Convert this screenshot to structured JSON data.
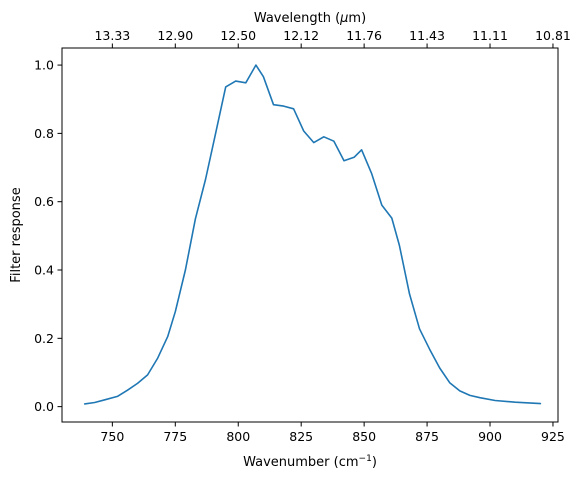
{
  "chart_data": {
    "type": "line",
    "xlabel": "Wavenumber (cm",
    "xlabel_sup": "−1",
    "xlabel_close": ")",
    "ylabel": "Filter response",
    "top_axis_label_pre": "Wavelength (",
    "top_axis_label_mu": "μ",
    "top_axis_label_post": "m)",
    "xlim": [
      730,
      927
    ],
    "ylim": [
      -0.045,
      1.05
    ],
    "x_ticks": [
      750,
      775,
      800,
      825,
      850,
      875,
      900,
      925
    ],
    "x_tick_labels": [
      "750",
      "775",
      "800",
      "825",
      "850",
      "875",
      "900",
      "925"
    ],
    "y_ticks": [
      0.0,
      0.2,
      0.4,
      0.6,
      0.8,
      1.0
    ],
    "y_tick_labels": [
      "0.0",
      "0.2",
      "0.4",
      "0.6",
      "0.8",
      "1.0"
    ],
    "top_ticks": [
      {
        "label": "13.33",
        "x": 750
      },
      {
        "label": "12.90",
        "x": 775
      },
      {
        "label": "12.50",
        "x": 800
      },
      {
        "label": "12.12",
        "x": 825
      },
      {
        "label": "11.76",
        "x": 850
      },
      {
        "label": "11.43",
        "x": 875
      },
      {
        "label": "11.11",
        "x": 900
      },
      {
        "label": "10.81",
        "x": 925
      }
    ],
    "grid": false,
    "line_color": "#1f77b4",
    "series": [
      {
        "x": [
          739,
          743,
          747,
          752,
          756,
          760,
          764,
          768,
          772,
          775,
          779,
          783,
          787,
          791,
          795,
          799,
          803,
          807,
          810,
          814,
          818,
          822,
          826,
          830,
          834,
          838,
          842,
          846,
          849,
          853,
          857,
          861,
          864,
          868,
          872,
          876,
          880,
          884,
          888,
          892,
          896,
          902,
          910,
          920
        ],
        "y": [
          0.008,
          0.012,
          0.02,
          0.03,
          0.048,
          0.068,
          0.093,
          0.142,
          0.205,
          0.278,
          0.4,
          0.55,
          0.665,
          0.8,
          0.936,
          0.953,
          0.948,
          1.0,
          0.966,
          0.884,
          0.88,
          0.872,
          0.807,
          0.773,
          0.79,
          0.777,
          0.72,
          0.73,
          0.752,
          0.682,
          0.59,
          0.552,
          0.472,
          0.33,
          0.228,
          0.168,
          0.113,
          0.07,
          0.046,
          0.033,
          0.026,
          0.018,
          0.013,
          0.009
        ]
      }
    ]
  }
}
